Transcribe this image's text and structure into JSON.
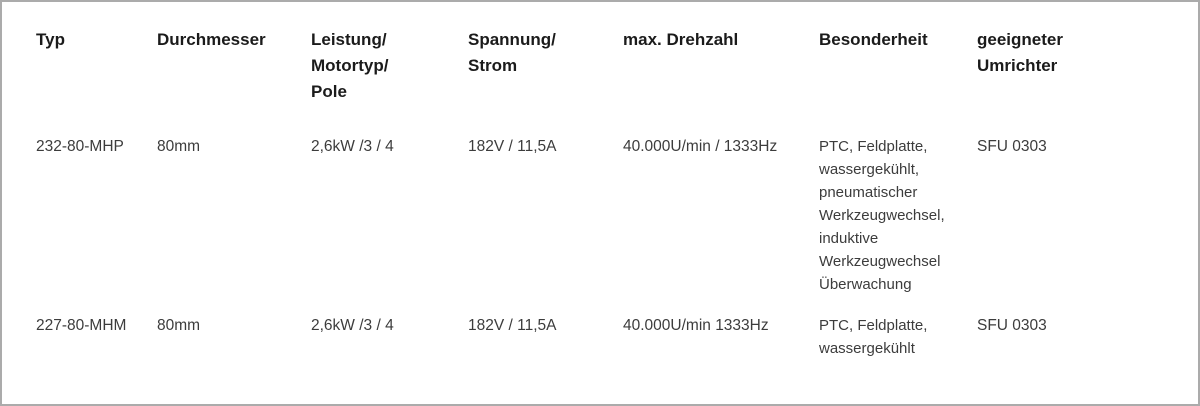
{
  "theme": {
    "background": "#ffffff",
    "border_color": "#ababab",
    "header_text_color": "#1b1b1b",
    "body_text_color": "#3c3c3c"
  },
  "table": {
    "headers": [
      "Typ",
      "Durchmesser",
      "Leistung/\nMotortyp/\nPole",
      "Spannung/\nStrom",
      "max. Drehzahl",
      "Besonderheit",
      "geeigneter\nUmrichter"
    ],
    "rows": [
      {
        "cells": [
          "232-80-MHP",
          "80mm",
          "2,6kW /3 / 4",
          "182V / 11,5A",
          "40.000U/min / 1333Hz",
          "PTC, Feldplatte,\nwassergekühlt,\npneumatischer\nWerkzeugwechsel,\ninduktive\nWerkzeugwechsel\nÜberwachung",
          "SFU 0303"
        ]
      },
      {
        "cells": [
          "227-80-MHM",
          "80mm",
          "2,6kW /3 / 4",
          "182V / 11,5A",
          "40.000U/min 1333Hz",
          "PTC, Feldplatte,\nwassergekühlt",
          "SFU 0303"
        ]
      }
    ]
  },
  "chart_data": {
    "type": "table",
    "columns": [
      "Typ",
      "Durchmesser",
      "Leistung/Motortyp/Pole",
      "Spannung/Strom",
      "max. Drehzahl",
      "Besonderheit",
      "geeigneter Umrichter"
    ],
    "rows": [
      [
        "232-80-MHP",
        "80mm",
        "2,6kW /3 / 4",
        "182V / 11,5A",
        "40.000U/min / 1333Hz",
        "PTC, Feldplatte, wassergekühlt, pneumatischer Werkzeugwechsel, induktive Werkzeugwechsel Überwachung",
        "SFU 0303"
      ],
      [
        "227-80-MHM",
        "80mm",
        "2,6kW /3 / 4",
        "182V / 11,5A",
        "40.000U/min 1333Hz",
        "PTC, Feldplatte, wassergekühlt",
        "SFU 0303"
      ]
    ],
    "layout": {
      "grid": false,
      "row_separators": false,
      "header_position": "top"
    }
  }
}
